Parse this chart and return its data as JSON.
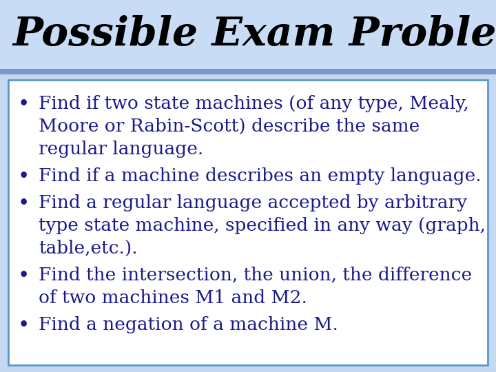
{
  "title": "Possible Exam Problems",
  "title_fontsize": 42,
  "title_color": "#000000",
  "title_bg_top": "#c8ddf5",
  "title_bg_bottom": "#aabfe0",
  "title_border_color": "#7799cc",
  "body_bg_color": "#ffffff",
  "body_border_color": "#5599cc",
  "bullet_text_color": "#1a1a8c",
  "bullet_fontsize": 19,
  "fig_bg_color": "#c5d8f0",
  "bullet_lines": [
    [
      "Find if two state machines (of any type, Mealy,",
      "Moore or Rabin-Scott) describe the same",
      "regular language."
    ],
    [
      "Find if a machine describes an empty language."
    ],
    [
      "Find a regular language accepted by arbitrary",
      "type state machine, specified in any way (graph,",
      "table,etc.)."
    ],
    [
      "Find the intersection, the union, the difference",
      "of two machines M1 and M2."
    ],
    [
      "Find a negation of a machine M."
    ]
  ]
}
